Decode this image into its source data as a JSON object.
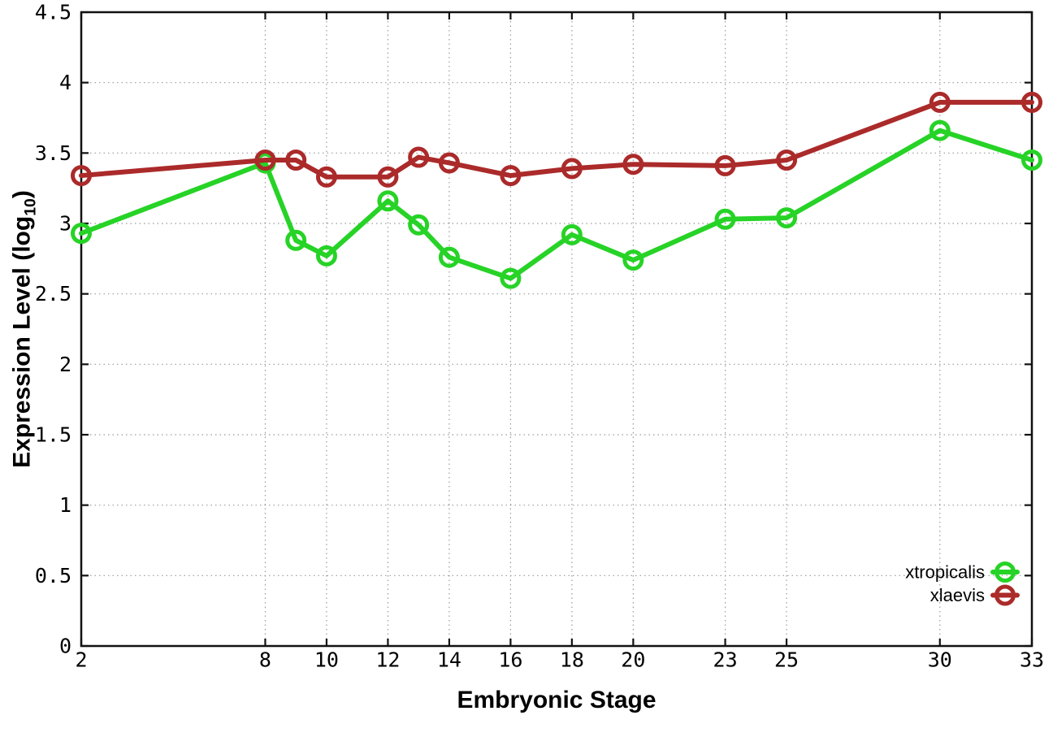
{
  "chart_data": {
    "type": "line",
    "x": [
      2,
      8,
      9,
      10,
      12,
      13,
      14,
      16,
      18,
      20,
      23,
      25,
      30,
      33
    ],
    "series": [
      {
        "name": "xtropicalis",
        "color": "#26d326",
        "values": [
          2.93,
          3.43,
          2.88,
          2.77,
          3.16,
          2.99,
          2.76,
          2.61,
          2.92,
          2.74,
          3.03,
          3.04,
          3.66,
          3.45
        ]
      },
      {
        "name": "xlaevis",
        "color": "#ab2a2a",
        "values": [
          3.34,
          3.45,
          3.45,
          3.33,
          3.33,
          3.47,
          3.43,
          3.34,
          3.39,
          3.42,
          3.41,
          3.45,
          3.86,
          3.86
        ]
      }
    ],
    "title": "",
    "xlabel": "Embryonic Stage",
    "ylabel": "Expression Level (log10)",
    "ylabel_parts": {
      "pre": "Expression Level (log",
      "sub": "10",
      "post": ")"
    },
    "xlim": [
      2,
      33
    ],
    "ylim": [
      0,
      4.5
    ],
    "xticks": [
      2,
      8,
      10,
      12,
      14,
      16,
      18,
      20,
      23,
      25,
      30,
      33
    ],
    "yticks": [
      0,
      0.5,
      1,
      1.5,
      2,
      2.5,
      3,
      3.5,
      4,
      4.5
    ],
    "grid": true,
    "marker": "open-circle",
    "legend_position": "bottom-right",
    "colors": {
      "background": "#ffffff",
      "axis": "#111111",
      "grid": "#9a9a9a",
      "tick_label": "#000000"
    }
  }
}
